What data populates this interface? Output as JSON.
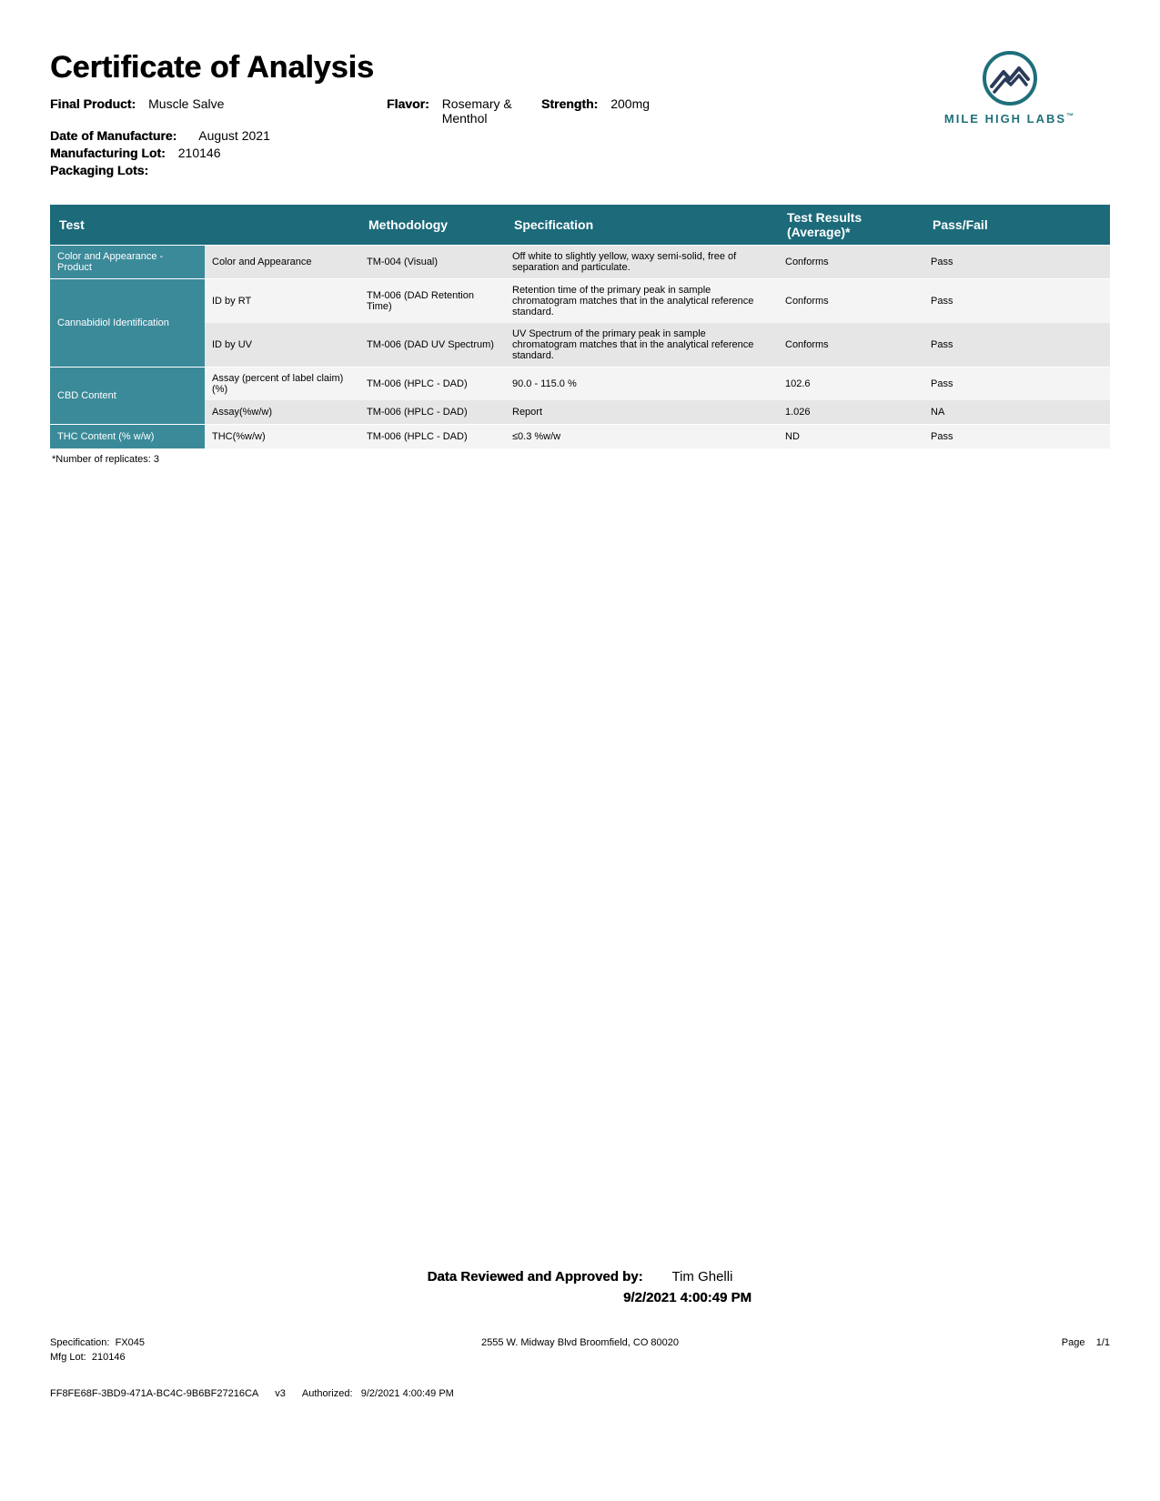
{
  "title": "Certificate of Analysis",
  "labels": {
    "final_product": "Final Product:",
    "flavor": "Flavor:",
    "strength": "Strength:",
    "date_manufacture": "Date of Manufacture:",
    "mfg_lot": "Manufacturing Lot:",
    "packaging_lots": "Packaging Lots:"
  },
  "product": {
    "final_product": "Muscle Salve",
    "flavor": "Rosemary & Menthol",
    "strength": "200mg",
    "date_manufacture": "August 2021",
    "mfg_lot": "210146",
    "packaging_lots": ""
  },
  "logo": {
    "text": "MILE HIGH LABS",
    "tm": "™",
    "ring_color": "#1f6f7a",
    "wave_color": "#2a3a5a"
  },
  "table": {
    "headers": [
      "Test",
      "",
      "Methodology",
      "Specification",
      "Test Results (Average)*",
      "Pass/Fail"
    ],
    "groups": [
      {
        "label": "Color and Appearance - Product",
        "rows": [
          {
            "test": "Color and Appearance",
            "method": "TM-004 (Visual)",
            "spec": "Off white to slightly yellow, waxy semi-solid, free of separation and particulate.",
            "result": "Conforms",
            "passfail": "Pass",
            "zebra": "a"
          }
        ]
      },
      {
        "label": "Cannabidiol Identification",
        "rows": [
          {
            "test": "ID by RT",
            "method": "TM-006 (DAD Retention Time)",
            "spec": "Retention time of the primary peak in sample chromatogram matches that in the analytical reference standard.",
            "result": "Conforms",
            "passfail": "Pass",
            "zebra": "b"
          },
          {
            "test": "ID by UV",
            "method": "TM-006 (DAD UV Spectrum)",
            "spec": "UV Spectrum of the primary peak in sample chromatogram matches that in the analytical reference standard.",
            "result": "Conforms",
            "passfail": "Pass",
            "zebra": "a"
          }
        ]
      },
      {
        "label": "CBD Content",
        "rows": [
          {
            "test": "Assay (percent of label claim)(%)",
            "method": "TM-006 (HPLC - DAD)",
            "spec": "90.0 - 115.0 %",
            "result": "102.6",
            "passfail": "Pass",
            "zebra": "b"
          },
          {
            "test": "Assay(%w/w)",
            "method": "TM-006 (HPLC - DAD)",
            "spec": "Report",
            "result": "1.026",
            "passfail": "NA",
            "zebra": "a"
          }
        ]
      },
      {
        "label": "THC Content (% w/w)",
        "rows": [
          {
            "test": "THC(%w/w)",
            "method": "TM-006 (HPLC - DAD)",
            "spec": "≤0.3 %w/w",
            "result": "ND",
            "passfail": "Pass",
            "zebra": "b"
          }
        ]
      }
    ],
    "footnote": "*Number of replicates: 3"
  },
  "approval": {
    "label": "Data Reviewed and Approved by:",
    "name": "Tim Ghelli",
    "timestamp": "9/2/2021 4:00:49 PM"
  },
  "footer": {
    "spec_label": "Specification:",
    "spec": "FX045",
    "mfg_label": "Mfg Lot:",
    "mfg": "210146",
    "address": "2555 W. Midway Blvd Broomfield, CO 80020",
    "page_label": "Page",
    "page": "1/1",
    "guid": "FF8FE68F-3BD9-471A-BC4C-9B6BF27216CA",
    "version": "v3",
    "auth_label": "Authorized:",
    "auth_ts": "9/2/2021 4:00:49 PM"
  },
  "colors": {
    "header_bg": "#1c6a7a",
    "group_bg": "#3b8a9a"
  }
}
